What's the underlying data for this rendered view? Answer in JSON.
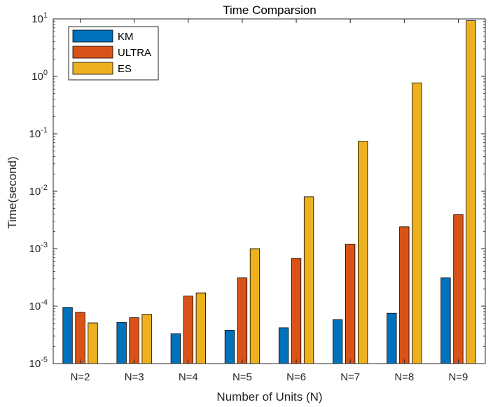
{
  "chart_data": {
    "type": "bar",
    "title": "Time Comparsion",
    "xlabel": "Number of Units (N)",
    "ylabel": "Time(second)",
    "yscale": "log",
    "ylim": [
      1e-05,
      10
    ],
    "yticks": [
      {
        "value": 1e-05,
        "base": "10",
        "exp": "-5"
      },
      {
        "value": 0.0001,
        "base": "10",
        "exp": "-4"
      },
      {
        "value": 0.001,
        "base": "10",
        "exp": "-3"
      },
      {
        "value": 0.01,
        "base": "10",
        "exp": "-2"
      },
      {
        "value": 0.1,
        "base": "10",
        "exp": "-1"
      },
      {
        "value": 1,
        "base": "10",
        "exp": "0"
      },
      {
        "value": 10,
        "base": "10",
        "exp": "1"
      }
    ],
    "categories": [
      "N=2",
      "N=3",
      "N=4",
      "N=5",
      "N=6",
      "N=7",
      "N=8",
      "N=9"
    ],
    "series": [
      {
        "name": "KM",
        "color": "#0072BD",
        "values": [
          9.5e-05,
          5.2e-05,
          3.3e-05,
          3.8e-05,
          4.2e-05,
          5.8e-05,
          7.5e-05,
          0.00031
        ]
      },
      {
        "name": "ULTRA",
        "color": "#D95319",
        "values": [
          7.8e-05,
          6.3e-05,
          0.00015,
          0.00031,
          0.00068,
          0.0012,
          0.0024,
          0.0039
        ]
      },
      {
        "name": "ES",
        "color": "#EDB120",
        "values": [
          5.1e-05,
          7.2e-05,
          0.00017,
          0.001,
          0.008,
          0.074,
          0.77,
          9.3
        ]
      }
    ],
    "legend": "top-left",
    "grid": false
  }
}
